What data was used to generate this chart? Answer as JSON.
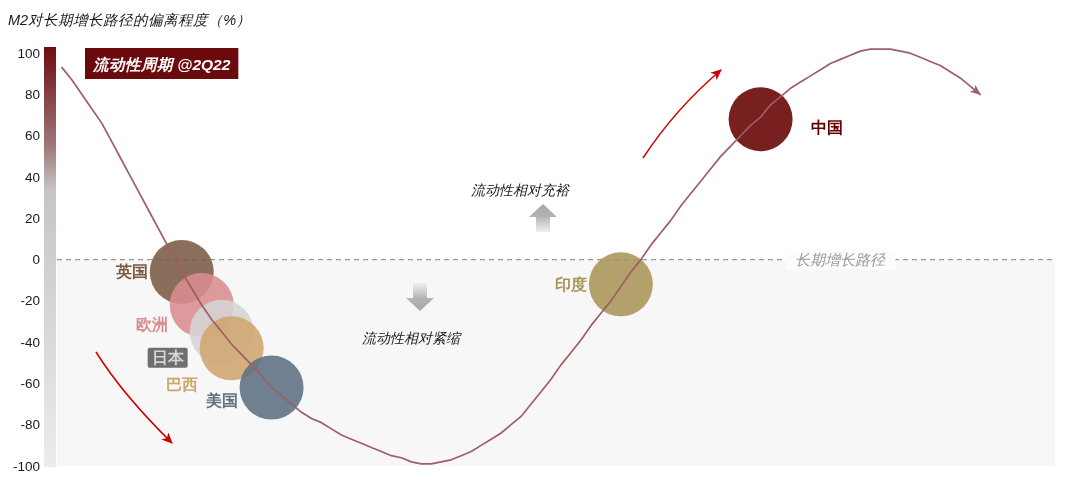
{
  "chart_data": {
    "type": "scatter",
    "title": "流动性周期 @2Q22",
    "ylabel": "M2对长期增长路径的偏离程度（%）",
    "categories": [
      null,
      null,
      null,
      null,
      null,
      null,
      null,
      null,
      null,
      null,
      null,
      null,
      null,
      null,
      null,
      null,
      null,
      null,
      null,
      null,
      null,
      null,
      null,
      null,
      null,
      null,
      null,
      null,
      null,
      null,
      null,
      null,
      null,
      null,
      null,
      null,
      null,
      null,
      null,
      null,
      null,
      null,
      null,
      null,
      null,
      null,
      null,
      null,
      null,
      null,
      null,
      null,
      null,
      null,
      null,
      null,
      null,
      null,
      null,
      null,
      null,
      null,
      null,
      null,
      null,
      null,
      null,
      null,
      null,
      null,
      null,
      null,
      null,
      null,
      null,
      null,
      null,
      null,
      null,
      null,
      null,
      null,
      null,
      null,
      null,
      null,
      null,
      null,
      null,
      null,
      null,
      null,
      null,
      null,
      null,
      null,
      null,
      null,
      null,
      null
    ],
    "ylim": [
      -100,
      103
    ],
    "yticks": [
      -100,
      -80,
      -60,
      -40,
      -20,
      0,
      20,
      40,
      60,
      80,
      100
    ],
    "tick_labels": "y",
    "grid": false,
    "legend": false,
    "marker": "circle",
    "series": [
      {
        "type": "line",
        "marker": "none",
        "color": "#9e5f64",
        "values": [
          93,
          87,
          80,
          73,
          66,
          57,
          48,
          39,
          30,
          21,
          12,
          3,
          -6,
          -14,
          -22,
          -29,
          -35,
          -41,
          -46,
          -51,
          -56,
          -62,
          -66,
          -70,
          -74,
          -77,
          -79,
          -82,
          -85,
          -87,
          -89,
          -91,
          -93,
          -95,
          -96,
          -98,
          -99,
          -99,
          -98,
          -97,
          -95,
          -93,
          -90,
          -87,
          -84,
          -80,
          -76,
          -70,
          -64,
          -58,
          -51,
          -45,
          -39,
          -32,
          -26,
          -20,
          -13,
          -6,
          0,
          7,
          13,
          19,
          26,
          32,
          38,
          44,
          50,
          55,
          60,
          65,
          69,
          75,
          79,
          83,
          86,
          89,
          92,
          95,
          97,
          99,
          101,
          102,
          102,
          102,
          101,
          100,
          98,
          96,
          94,
          91,
          88,
          84,
          80,
          null,
          null,
          null,
          null,
          null,
          null,
          null
        ]
      },
      {
        "name": "英国",
        "color": "#7b5a44",
        "values": [
          null,
          null,
          null,
          null,
          null,
          null,
          null,
          null,
          null,
          null,
          null,
          null,
          -6,
          null,
          null,
          null,
          null,
          null,
          null,
          null,
          null,
          null,
          null,
          null,
          null,
          null,
          null,
          null,
          null,
          null,
          null,
          null,
          null,
          null,
          null,
          null,
          null,
          null,
          null,
          null,
          null,
          null,
          null,
          null,
          null,
          null,
          null,
          null,
          null,
          null,
          null,
          null,
          null,
          null,
          null,
          null,
          null,
          null,
          null,
          null,
          null,
          null,
          null,
          null,
          null,
          null,
          null,
          null,
          null,
          null,
          null,
          null,
          null,
          null,
          null,
          null,
          null,
          null,
          null,
          null,
          null,
          null,
          null,
          null,
          null,
          null,
          null,
          null,
          null,
          null,
          null,
          null,
          null,
          null,
          null,
          null,
          null,
          null,
          null,
          null
        ]
      },
      {
        "name": "欧洲",
        "color": "#d88d90",
        "values": [
          null,
          null,
          null,
          null,
          null,
          null,
          null,
          null,
          null,
          null,
          null,
          null,
          null,
          null,
          -22,
          null,
          null,
          null,
          null,
          null,
          null,
          null,
          null,
          null,
          null,
          null,
          null,
          null,
          null,
          null,
          null,
          null,
          null,
          null,
          null,
          null,
          null,
          null,
          null,
          null,
          null,
          null,
          null,
          null,
          null,
          null,
          null,
          null,
          null,
          null,
          null,
          null,
          null,
          null,
          null,
          null,
          null,
          null,
          null,
          null,
          null,
          null,
          null,
          null,
          null,
          null,
          null,
          null,
          null,
          null,
          null,
          null,
          null,
          null,
          null,
          null,
          null,
          null,
          null,
          null,
          null,
          null,
          null,
          null,
          null,
          null,
          null,
          null,
          null,
          null,
          null,
          null,
          null,
          null,
          null,
          null,
          null,
          null,
          null,
          null
        ]
      },
      {
        "name": "日本",
        "color": "#d5d5d5",
        "values": [
          null,
          null,
          null,
          null,
          null,
          null,
          null,
          null,
          null,
          null,
          null,
          null,
          null,
          null,
          null,
          null,
          -35,
          null,
          null,
          null,
          null,
          null,
          null,
          null,
          null,
          null,
          null,
          null,
          null,
          null,
          null,
          null,
          null,
          null,
          null,
          null,
          null,
          null,
          null,
          null,
          null,
          null,
          null,
          null,
          null,
          null,
          null,
          null,
          null,
          null,
          null,
          null,
          null,
          null,
          null,
          null,
          null,
          null,
          null,
          null,
          null,
          null,
          null,
          null,
          null,
          null,
          null,
          null,
          null,
          null,
          null,
          null,
          null,
          null,
          null,
          null,
          null,
          null,
          null,
          null,
          null,
          null,
          null,
          null,
          null,
          null,
          null,
          null,
          null,
          null,
          null,
          null,
          null,
          null,
          null,
          null,
          null,
          null,
          null,
          null
        ]
      },
      {
        "name": "巴西",
        "color": "#cfa56e",
        "values": [
          null,
          null,
          null,
          null,
          null,
          null,
          null,
          null,
          null,
          null,
          null,
          null,
          null,
          null,
          null,
          null,
          null,
          -43,
          null,
          null,
          null,
          null,
          null,
          null,
          null,
          null,
          null,
          null,
          null,
          null,
          null,
          null,
          null,
          null,
          null,
          null,
          null,
          null,
          null,
          null,
          null,
          null,
          null,
          null,
          null,
          null,
          null,
          null,
          null,
          null,
          null,
          null,
          null,
          null,
          null,
          null,
          null,
          null,
          null,
          null,
          null,
          null,
          null,
          null,
          null,
          null,
          null,
          null,
          null,
          null,
          null,
          null,
          null,
          null,
          null,
          null,
          null,
          null,
          null,
          null,
          null,
          null,
          null,
          null,
          null,
          null,
          null,
          null,
          null,
          null,
          null,
          null,
          null,
          null,
          null,
          null,
          null,
          null,
          null,
          null
        ]
      },
      {
        "name": "美国",
        "color": "#5f7082",
        "values": [
          null,
          null,
          null,
          null,
          null,
          null,
          null,
          null,
          null,
          null,
          null,
          null,
          null,
          null,
          null,
          null,
          null,
          null,
          null,
          null,
          null,
          -62,
          null,
          null,
          null,
          null,
          null,
          null,
          null,
          null,
          null,
          null,
          null,
          null,
          null,
          null,
          null,
          null,
          null,
          null,
          null,
          null,
          null,
          null,
          null,
          null,
          null,
          null,
          null,
          null,
          null,
          null,
          null,
          null,
          null,
          null,
          null,
          null,
          null,
          null,
          null,
          null,
          null,
          null,
          null,
          null,
          null,
          null,
          null,
          null,
          null,
          null,
          null,
          null,
          null,
          null,
          null,
          null,
          null,
          null,
          null,
          null,
          null,
          null,
          null,
          null,
          null,
          null,
          null,
          null,
          null,
          null,
          null,
          null,
          null,
          null,
          null,
          null,
          null,
          null
        ]
      },
      {
        "name": "印度",
        "color": "#a89558",
        "values": [
          null,
          null,
          null,
          null,
          null,
          null,
          null,
          null,
          null,
          null,
          null,
          null,
          null,
          null,
          null,
          null,
          null,
          null,
          null,
          null,
          null,
          null,
          null,
          null,
          null,
          null,
          null,
          null,
          null,
          null,
          null,
          null,
          null,
          null,
          null,
          null,
          null,
          null,
          null,
          null,
          null,
          null,
          null,
          null,
          null,
          null,
          null,
          null,
          null,
          null,
          null,
          null,
          null,
          null,
          null,
          null,
          -12,
          null,
          null,
          null,
          null,
          null,
          null,
          null,
          null,
          null,
          null,
          null,
          null,
          null,
          null,
          null,
          null,
          null,
          null,
          null,
          null,
          null,
          null,
          null,
          null,
          null,
          null,
          null,
          null,
          null,
          null,
          null,
          null,
          null,
          null,
          null,
          null,
          null,
          null,
          null,
          null,
          null,
          null,
          null
        ]
      },
      {
        "name": "中国",
        "color": "#650000",
        "values": [
          null,
          null,
          null,
          null,
          null,
          null,
          null,
          null,
          null,
          null,
          null,
          null,
          null,
          null,
          null,
          null,
          null,
          null,
          null,
          null,
          null,
          null,
          null,
          null,
          null,
          null,
          null,
          null,
          null,
          null,
          null,
          null,
          null,
          null,
          null,
          null,
          null,
          null,
          null,
          null,
          null,
          null,
          null,
          null,
          null,
          null,
          null,
          null,
          null,
          null,
          null,
          null,
          null,
          null,
          null,
          null,
          null,
          null,
          null,
          null,
          null,
          null,
          null,
          null,
          null,
          null,
          null,
          null,
          null,
          null,
          68,
          null,
          null,
          null,
          null,
          null,
          null,
          null,
          null,
          null,
          null,
          null,
          null,
          null,
          null,
          null,
          null,
          null,
          null,
          null,
          null,
          null,
          null,
          null,
          null,
          null,
          null,
          null,
          null,
          null
        ]
      }
    ],
    "ref_lines": [
      {
        "axis": "y",
        "value": 0,
        "label": "长期增长路径",
        "color": "#999999",
        "line_style": "dashed"
      }
    ],
    "bands": [
      {
        "axis": "y",
        "from": -100,
        "to": 0,
        "color": "#f7f7f7"
      }
    ],
    "annotations": [
      "流动性相对充裕",
      "流动性相对紧缩"
    ]
  }
}
